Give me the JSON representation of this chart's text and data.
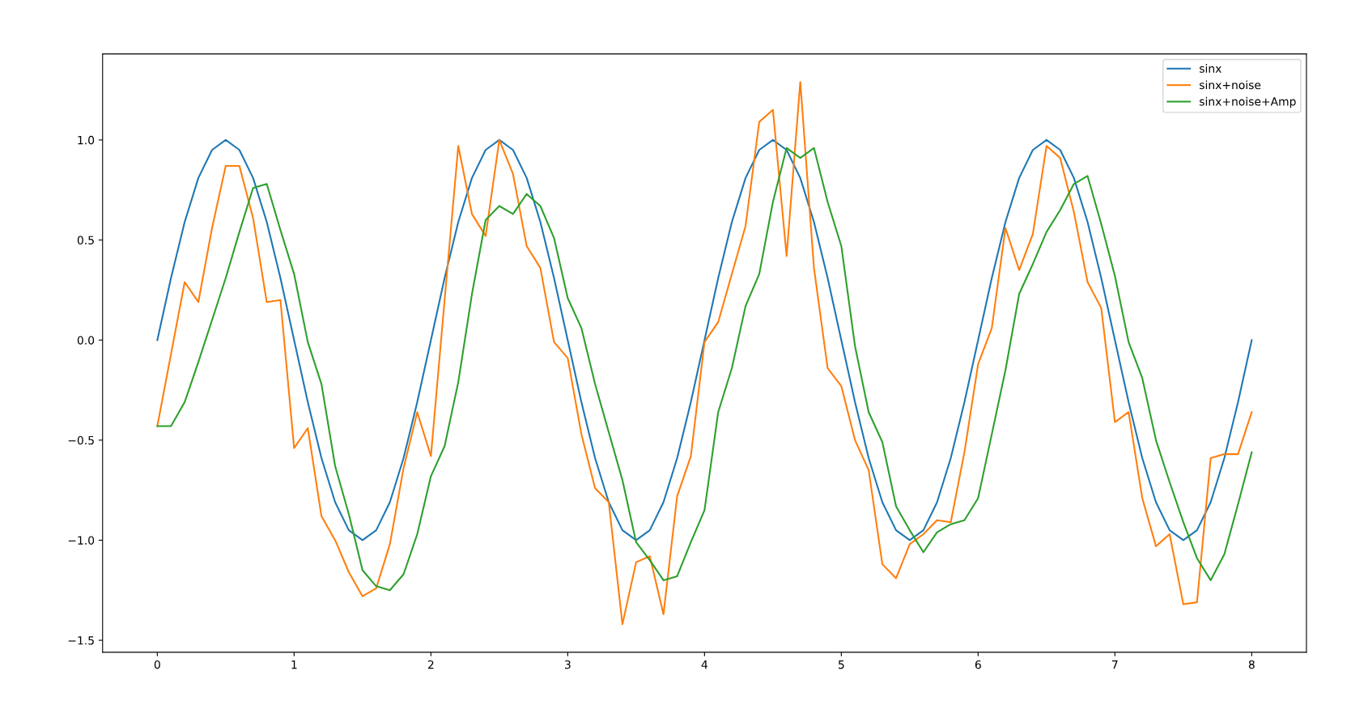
{
  "chart_data": {
    "type": "line",
    "x": [
      0,
      0.1,
      0.2,
      0.3,
      0.4,
      0.5,
      0.6,
      0.7,
      0.8,
      0.9,
      1,
      1.1,
      1.2,
      1.3,
      1.4,
      1.5,
      1.6,
      1.7,
      1.8,
      1.9,
      2,
      2.1,
      2.2,
      2.3,
      2.4,
      2.5,
      2.6,
      2.7,
      2.8,
      2.9,
      3,
      3.1,
      3.2,
      3.3,
      3.4,
      3.5,
      3.6,
      3.7,
      3.8,
      3.9,
      4,
      4.1,
      4.2,
      4.3,
      4.4,
      4.5,
      4.6,
      4.7,
      4.8,
      4.9,
      5,
      5.1,
      5.2,
      5.3,
      5.4,
      5.5,
      5.6,
      5.7,
      5.8,
      5.9,
      6,
      6.1,
      6.2,
      6.3,
      6.4,
      6.5,
      6.6,
      6.7,
      6.8,
      6.9,
      7,
      7.1,
      7.2,
      7.3,
      7.4,
      7.5,
      7.6,
      7.7,
      7.8,
      7.9,
      8
    ],
    "series": [
      {
        "name": "sinx",
        "color": "#1f77b4",
        "values": [
          0,
          0.31,
          0.59,
          0.81,
          0.95,
          1,
          0.95,
          0.81,
          0.59,
          0.31,
          0,
          -0.31,
          -0.59,
          -0.81,
          -0.95,
          -1,
          -0.95,
          -0.81,
          -0.59,
          -0.31,
          0,
          0.31,
          0.59,
          0.81,
          0.95,
          1,
          0.95,
          0.81,
          0.59,
          0.31,
          0,
          -0.31,
          -0.59,
          -0.81,
          -0.95,
          -1,
          -0.95,
          -0.81,
          -0.59,
          -0.31,
          0,
          0.31,
          0.59,
          0.81,
          0.95,
          1,
          0.95,
          0.81,
          0.59,
          0.31,
          0,
          -0.31,
          -0.59,
          -0.81,
          -0.95,
          -1,
          -0.95,
          -0.81,
          -0.59,
          -0.31,
          0,
          0.31,
          0.59,
          0.81,
          0.95,
          1,
          0.95,
          0.81,
          0.59,
          0.31,
          0,
          -0.31,
          -0.59,
          -0.81,
          -0.95,
          -1,
          -0.95,
          -0.81,
          -0.59,
          -0.31,
          0
        ]
      },
      {
        "name": "sinx+noise",
        "color": "#ff7f0e",
        "values": [
          -0.43,
          -0.07,
          0.29,
          0.19,
          0.56,
          0.87,
          0.87,
          0.61,
          0.19,
          0.2,
          -0.54,
          -0.44,
          -0.88,
          -1.0,
          -1.16,
          -1.28,
          -1.24,
          -1.02,
          -0.64,
          -0.36,
          -0.58,
          0.2,
          0.97,
          0.63,
          0.52,
          1.0,
          0.83,
          0.47,
          0.36,
          -0.01,
          -0.09,
          -0.47,
          -0.74,
          -0.81,
          -1.42,
          -1.11,
          -1.08,
          -1.37,
          -0.78,
          -0.58,
          -0.01,
          0.09,
          0.33,
          0.57,
          1.09,
          1.15,
          0.42,
          1.29,
          0.36,
          -0.14,
          -0.23,
          -0.5,
          -0.65,
          -1.12,
          -1.19,
          -1.02,
          -0.97,
          -0.9,
          -0.91,
          -0.56,
          -0.12,
          0.06,
          0.56,
          0.35,
          0.53,
          0.97,
          0.91,
          0.64,
          0.29,
          0.16,
          -0.41,
          -0.36,
          -0.79,
          -1.03,
          -0.97,
          -1.32,
          -1.31,
          -0.59,
          -0.57,
          -0.57,
          -0.36
        ]
      },
      {
        "name": "sinx+noise+Amp",
        "color": "#2ca02c",
        "values": [
          -0.43,
          -0.43,
          -0.31,
          -0.11,
          0.1,
          0.31,
          0.54,
          0.76,
          0.78,
          0.55,
          0.33,
          -0.01,
          -0.22,
          -0.63,
          -0.87,
          -1.15,
          -1.23,
          -1.25,
          -1.17,
          -0.97,
          -0.68,
          -0.53,
          -0.21,
          0.23,
          0.6,
          0.67,
          0.63,
          0.73,
          0.67,
          0.51,
          0.21,
          0.06,
          -0.22,
          -0.46,
          -0.7,
          -1.01,
          -1.1,
          -1.2,
          -1.18,
          -1.01,
          -0.85,
          -0.36,
          -0.14,
          0.17,
          0.33,
          0.69,
          0.96,
          0.91,
          0.96,
          0.69,
          0.47,
          -0.03,
          -0.36,
          -0.51,
          -0.83,
          -0.95,
          -1.06,
          -0.96,
          -0.92,
          -0.9,
          -0.79,
          -0.47,
          -0.15,
          0.23,
          0.38,
          0.54,
          0.65,
          0.78,
          0.82,
          0.58,
          0.32,
          -0.01,
          -0.19,
          -0.5,
          -0.71,
          -0.91,
          -1.09,
          -1.2,
          -1.07,
          -0.82,
          -0.56
        ]
      }
    ],
    "xlim": [
      -0.4,
      8.4
    ],
    "xticks": [
      0,
      1,
      2,
      3,
      4,
      5,
      6,
      7,
      8
    ],
    "ylim": [
      -1.56,
      1.43
    ],
    "yticks": [
      {
        "value": -1.5,
        "label": "−1.5"
      },
      {
        "value": -1.0,
        "label": "−1.0"
      },
      {
        "value": -0.5,
        "label": "−0.5"
      },
      {
        "value": 0.0,
        "label": "0.0"
      },
      {
        "value": 0.5,
        "label": "0.5"
      },
      {
        "value": 1.0,
        "label": "1.0"
      }
    ],
    "legend": "top right",
    "grid": false,
    "marker": "none",
    "line_style": "solid"
  }
}
